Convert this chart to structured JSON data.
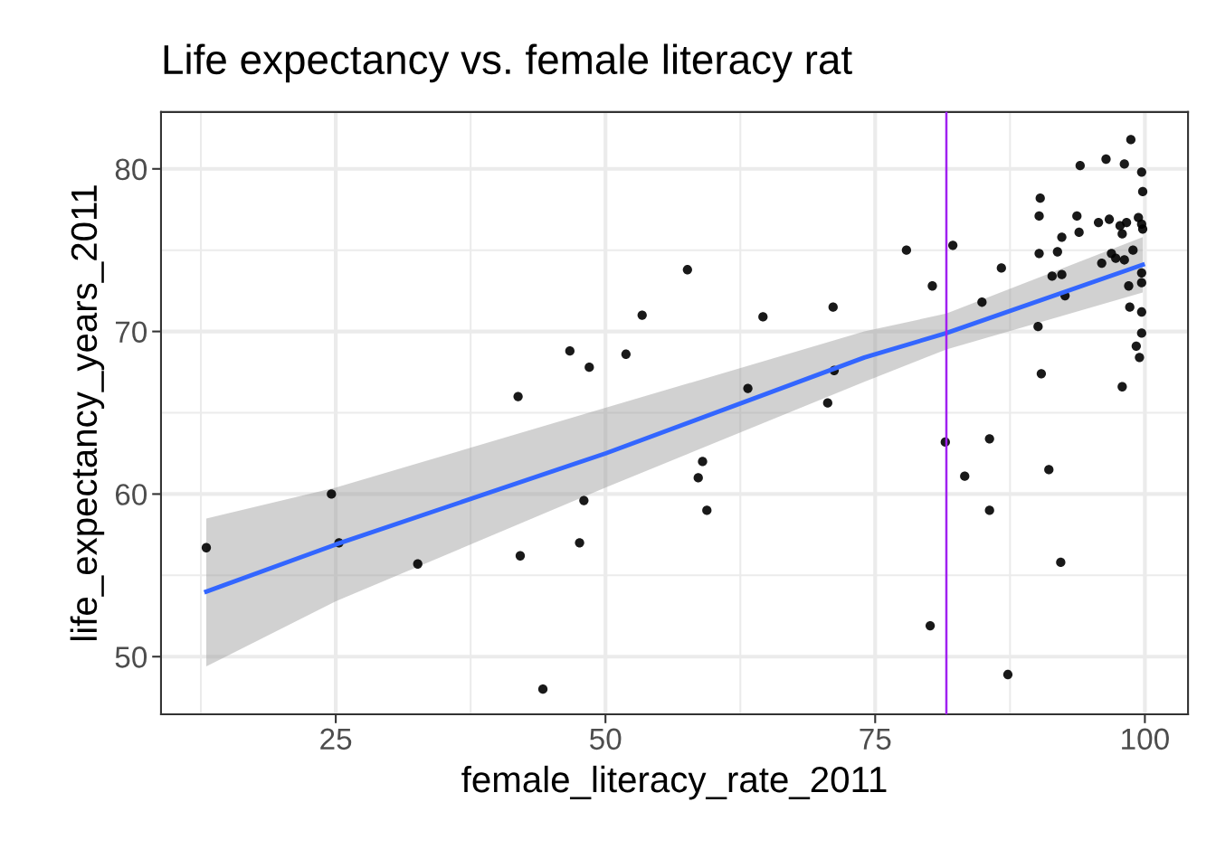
{
  "chart_data": {
    "type": "scatter",
    "title": "Life expectancy vs. female literacy rat",
    "xlabel": "female_literacy_rate_2011",
    "ylabel": "life_expectancy_years_2011",
    "xlim": [
      8.8,
      104.0
    ],
    "ylim": [
      46.45,
      83.5
    ],
    "xticks": [
      25,
      50,
      75,
      100
    ],
    "yticks": [
      50,
      60,
      70,
      80
    ],
    "grid": true,
    "series": [
      {
        "marker": "circle",
        "color": "#000000",
        "x": [
          13.0,
          24.6,
          25.3,
          32.6,
          41.9,
          42.1,
          44.2,
          46.7,
          47.6,
          48.0,
          48.5,
          51.9,
          53.4,
          57.6,
          58.6,
          59.0,
          59.4,
          63.2,
          64.6,
          70.6,
          71.1,
          71.2,
          77.9,
          80.3,
          80.1,
          81.5,
          82.2,
          83.3,
          84.9,
          85.6,
          85.6,
          86.7,
          87.3,
          98.7,
          96.4,
          94.0,
          98.1,
          99.7,
          99.8,
          90.3,
          90.2,
          93.7,
          95.7,
          96.7,
          97.7,
          98.3,
          99.4,
          99.7,
          99.8,
          97.9,
          93.9,
          92.3,
          90.2,
          91.9,
          96.0,
          96.9,
          97.3,
          98.1,
          98.9,
          91.4,
          92.3,
          92.6,
          99.7,
          99.7,
          98.5,
          90.1,
          98.6,
          99.7,
          99.7,
          99.2,
          99.5,
          90.4,
          97.9,
          91.1,
          92.2
        ],
        "values": [
          56.7,
          60.0,
          57.0,
          55.7,
          66.0,
          56.2,
          48.0,
          68.8,
          57.0,
          59.6,
          67.8,
          68.6,
          71.0,
          73.8,
          61.0,
          62.0,
          59.0,
          66.5,
          70.9,
          65.6,
          71.5,
          67.6,
          75.0,
          72.8,
          51.9,
          63.2,
          75.3,
          61.1,
          71.8,
          63.4,
          59.0,
          73.9,
          48.9,
          81.8,
          80.6,
          80.2,
          80.3,
          79.8,
          78.6,
          78.2,
          77.1,
          77.1,
          76.7,
          76.9,
          76.5,
          76.7,
          77.0,
          76.6,
          76.3,
          76.0,
          76.1,
          75.8,
          74.8,
          74.9,
          74.2,
          74.8,
          74.5,
          74.4,
          75.0,
          73.4,
          73.5,
          72.2,
          73.6,
          73.0,
          72.8,
          70.3,
          71.5,
          71.2,
          69.9,
          69.1,
          68.4,
          67.4,
          66.6,
          61.5,
          55.8
        ]
      },
      {
        "type": "line",
        "marker": "none",
        "color": "#3366ff",
        "x": [
          13.0,
          25,
          50,
          74,
          81.6,
          99.8
        ],
        "values": [
          54.0,
          56.9,
          62.5,
          68.4,
          69.9,
          74.1
        ],
        "lower": [
          49.4,
          53.4,
          60.4,
          66.9,
          68.9,
          72.4
        ],
        "upper": [
          58.5,
          60.4,
          65.3,
          70.0,
          71.1,
          75.8
        ]
      }
    ],
    "ref_lines": [
      {
        "axis": "x",
        "value": 81.6,
        "color": "#a020f0"
      }
    ]
  }
}
